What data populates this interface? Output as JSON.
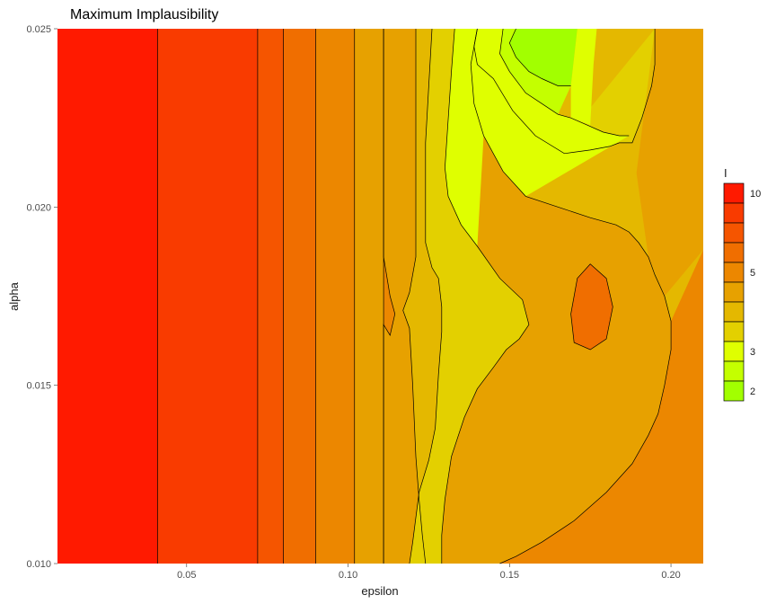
{
  "chart_data": {
    "type": "contour",
    "title": "Maximum Implausibility",
    "xlabel": "epsilon",
    "ylabel": "alpha",
    "xlim": [
      0.01,
      0.21
    ],
    "ylim": [
      0.01,
      0.025
    ],
    "x_ticks": [
      {
        "value": 0.05,
        "label": "0.05"
      },
      {
        "value": 0.1,
        "label": "0.10"
      },
      {
        "value": 0.15,
        "label": "0.15"
      },
      {
        "value": 0.2,
        "label": "0.20"
      }
    ],
    "y_ticks": [
      {
        "value": 0.01,
        "label": "0.010"
      },
      {
        "value": 0.015,
        "label": "0.015"
      },
      {
        "value": 0.02,
        "label": "0.020"
      },
      {
        "value": 0.025,
        "label": "0.025"
      }
    ],
    "grid": false,
    "legend": {
      "title": "I",
      "position": "right",
      "labels": [
        {
          "text": "10",
          "swatch": 0
        },
        {
          "text": "5",
          "swatch": 4
        },
        {
          "text": "3",
          "swatch": 8
        },
        {
          "text": "2",
          "swatch": 10
        }
      ],
      "colors": [
        "#ff1a00",
        "#f93b00",
        "#f55500",
        "#f06e00",
        "#ec8700",
        "#e7a100",
        "#e4b800",
        "#e3d000",
        "#dfff00",
        "#c4ff00",
        "#a2ff00"
      ]
    },
    "boundaries_left_vertical": [
      0.041,
      0.072,
      0.08,
      0.09,
      0.102,
      0.111
    ],
    "contours": [
      {
        "name": "c1",
        "points": [
          [
            0.111,
            0.025
          ],
          [
            0.111,
            0.0186
          ],
          [
            0.113,
            0.0175
          ],
          [
            0.1145,
            0.017
          ],
          [
            0.113,
            0.0164
          ],
          [
            0.111,
            0.0167
          ],
          [
            0.111,
            0.01
          ]
        ]
      },
      {
        "name": "c2",
        "points": [
          [
            0.121,
            0.025
          ],
          [
            0.121,
            0.0186
          ],
          [
            0.119,
            0.0176
          ],
          [
            0.117,
            0.0171
          ],
          [
            0.119,
            0.0166
          ],
          [
            0.12,
            0.015
          ],
          [
            0.121,
            0.013
          ],
          [
            0.122,
            0.0118
          ],
          [
            0.123,
            0.0108
          ],
          [
            0.124,
            0.01
          ]
        ]
      },
      {
        "name": "c3",
        "points": [
          [
            0.126,
            0.025
          ],
          [
            0.124,
            0.0218
          ],
          [
            0.124,
            0.019
          ],
          [
            0.126,
            0.0183
          ],
          [
            0.128,
            0.018
          ],
          [
            0.129,
            0.0172
          ],
          [
            0.129,
            0.0165
          ],
          [
            0.128,
            0.0153
          ],
          [
            0.127,
            0.0138
          ],
          [
            0.125,
            0.0129
          ],
          [
            0.122,
            0.012
          ],
          [
            0.12,
            0.0106
          ],
          [
            0.119,
            0.01
          ]
        ]
      },
      {
        "name": "c4",
        "points": [
          [
            0.133,
            0.025
          ],
          [
            0.132,
            0.0238
          ],
          [
            0.13,
            0.0211
          ],
          [
            0.131,
            0.0203
          ],
          [
            0.135,
            0.0195
          ],
          [
            0.14,
            0.0189
          ],
          [
            0.147,
            0.018
          ],
          [
            0.154,
            0.0174
          ],
          [
            0.156,
            0.0167
          ],
          [
            0.153,
            0.0163
          ],
          [
            0.149,
            0.016
          ],
          [
            0.145,
            0.0155
          ],
          [
            0.14,
            0.0149
          ],
          [
            0.136,
            0.0141
          ],
          [
            0.132,
            0.013
          ],
          [
            0.13,
            0.0118
          ],
          [
            0.129,
            0.0108
          ],
          [
            0.129,
            0.01
          ]
        ]
      },
      {
        "name": "c5",
        "points": [
          [
            0.14,
            0.025
          ],
          [
            0.139,
            0.0245
          ],
          [
            0.14,
            0.024
          ],
          [
            0.145,
            0.0236
          ],
          [
            0.151,
            0.0227
          ],
          [
            0.158,
            0.022
          ],
          [
            0.167,
            0.0215
          ],
          [
            0.175,
            0.0216
          ],
          [
            0.181,
            0.0217
          ],
          [
            0.184,
            0.0218
          ],
          [
            0.188,
            0.0218
          ],
          [
            0.191,
            0.0225
          ],
          [
            0.194,
            0.0234
          ],
          [
            0.195,
            0.024
          ],
          [
            0.195,
            0.025
          ]
        ]
      },
      {
        "name": "c6",
        "points": [
          [
            0.14,
            0.025
          ],
          [
            0.139,
            0.0245
          ],
          [
            0.138,
            0.024
          ],
          [
            0.139,
            0.0229
          ],
          [
            0.142,
            0.022
          ],
          [
            0.148,
            0.021
          ],
          [
            0.155,
            0.0203
          ],
          [
            0.165,
            0.02
          ],
          [
            0.175,
            0.0197
          ],
          [
            0.183,
            0.0195
          ],
          [
            0.187,
            0.0193
          ],
          [
            0.19,
            0.019
          ],
          [
            0.193,
            0.0186
          ],
          [
            0.195,
            0.0181
          ],
          [
            0.198,
            0.0175
          ],
          [
            0.2,
            0.0168
          ],
          [
            0.2,
            0.016
          ],
          [
            0.198,
            0.015
          ],
          [
            0.196,
            0.0142
          ],
          [
            0.193,
            0.0136
          ],
          [
            0.188,
            0.0128
          ],
          [
            0.18,
            0.012
          ],
          [
            0.17,
            0.0112
          ],
          [
            0.16,
            0.0106
          ],
          [
            0.152,
            0.0102
          ],
          [
            0.147,
            0.01
          ]
        ]
      },
      {
        "name": "c7",
        "points": [
          [
            0.148,
            0.025
          ],
          [
            0.147,
            0.0243
          ],
          [
            0.15,
            0.0238
          ],
          [
            0.155,
            0.0232
          ],
          [
            0.16,
            0.0229
          ],
          [
            0.165,
            0.0226
          ],
          [
            0.169,
            0.0225
          ],
          [
            0.174,
            0.0223
          ],
          [
            0.179,
            0.0221
          ],
          [
            0.184,
            0.022
          ],
          [
            0.187,
            0.022
          ]
        ]
      },
      {
        "name": "c8",
        "points": [
          [
            0.152,
            0.025
          ],
          [
            0.15,
            0.0246
          ],
          [
            0.152,
            0.0242
          ],
          [
            0.156,
            0.0238
          ],
          [
            0.16,
            0.0236
          ],
          [
            0.165,
            0.0234
          ],
          [
            0.169,
            0.0234
          ]
        ]
      }
    ]
  }
}
